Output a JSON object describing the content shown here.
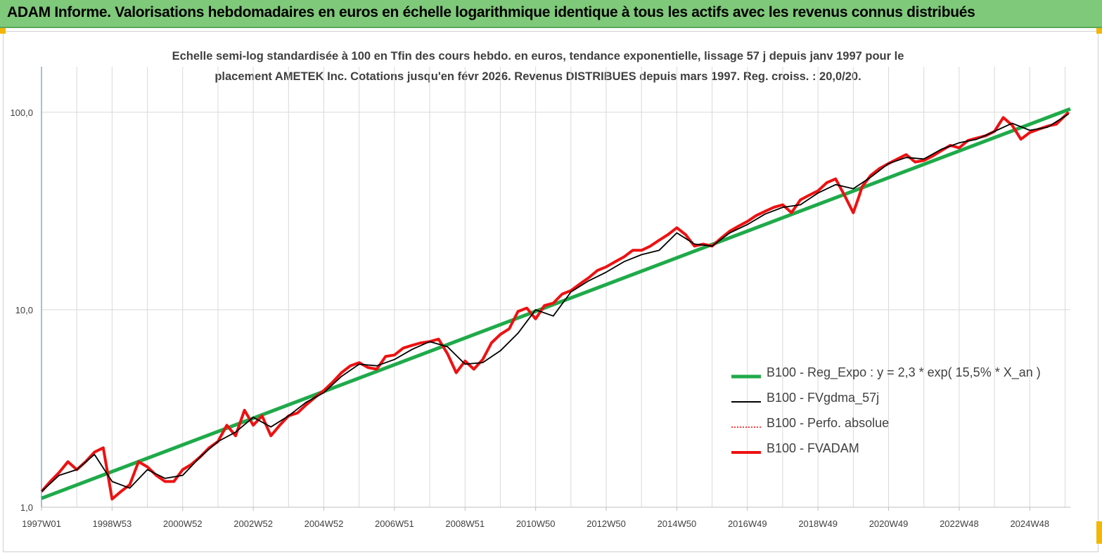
{
  "banner": {
    "title": "ADAM Informe. Valorisations hebdomadaires en euros en échelle logarithmique identique à tous les actifs avec les revenus connus distribués"
  },
  "chart_data": {
    "type": "line",
    "title_line1": "Echelle semi-log standardisée à 100 en Tfin des cours hebdo. en euros, tendance exponentielle, lissage 57 j depuis janv 1997 pour le",
    "title_line2": "placement AMETEK Inc. Cotations jusqu'en févr 2026. Revenus DISTRIBUES depuis mars 1997. Reg. croiss. : 20,0/20.",
    "y_scale": "log",
    "ylim": [
      1,
      170
    ],
    "y_ticks": [
      {
        "value": 1,
        "label": "1,0"
      },
      {
        "value": 10,
        "label": "10,0"
      },
      {
        "value": 100,
        "label": "100,0"
      }
    ],
    "xlim": [
      1997.0,
      2026.15
    ],
    "x_ticks": [
      {
        "value": 1997.0,
        "label": "1997W01"
      },
      {
        "value": 1999.0,
        "label": "1998W53"
      },
      {
        "value": 2001.0,
        "label": "2000W52"
      },
      {
        "value": 2003.0,
        "label": "2002W52"
      },
      {
        "value": 2005.0,
        "label": "2004W52"
      },
      {
        "value": 2007.0,
        "label": "2006W51"
      },
      {
        "value": 2009.0,
        "label": "2008W51"
      },
      {
        "value": 2011.0,
        "label": "2010W50"
      },
      {
        "value": 2013.0,
        "label": "2012W50"
      },
      {
        "value": 2015.0,
        "label": "2014W50"
      },
      {
        "value": 2017.0,
        "label": "2016W49"
      },
      {
        "value": 2019.0,
        "label": "2018W49"
      },
      {
        "value": 2021.0,
        "label": "2020W49"
      },
      {
        "value": 2023.0,
        "label": "2022W48"
      },
      {
        "value": 2025.0,
        "label": "2024W48"
      }
    ],
    "grid": true,
    "legend_position": "bottom-right",
    "series": [
      {
        "name": "B100 - Reg_Expo : y = 2,3 * exp( 15,5% *  X_an )",
        "color": "#1faa4a",
        "style": "thick-solid",
        "x": [
          1997.0,
          2026.15
        ],
        "y": [
          1.11,
          104
        ]
      },
      {
        "name": "B100 - FVgdma_57j",
        "color": "#000000",
        "style": "solid",
        "x": [
          1997.0,
          1997.5,
          1998.0,
          1998.5,
          1999.0,
          1999.5,
          2000.0,
          2000.5,
          2001.0,
          2001.5,
          2002.0,
          2002.5,
          2003.0,
          2003.5,
          2004.0,
          2004.5,
          2005.0,
          2005.5,
          2006.0,
          2006.5,
          2007.0,
          2007.5,
          2008.0,
          2008.5,
          2009.0,
          2009.5,
          2010.0,
          2010.5,
          2011.0,
          2011.5,
          2012.0,
          2012.5,
          2013.0,
          2013.5,
          2014.0,
          2014.5,
          2015.0,
          2015.5,
          2016.0,
          2016.5,
          2017.0,
          2017.5,
          2018.0,
          2018.5,
          2019.0,
          2019.5,
          2020.0,
          2020.5,
          2021.0,
          2021.5,
          2022.0,
          2022.5,
          2023.0,
          2023.5,
          2024.0,
          2024.5,
          2025.0,
          2025.5,
          2026.1
        ],
        "y": [
          1.2,
          1.45,
          1.55,
          1.85,
          1.35,
          1.25,
          1.55,
          1.4,
          1.45,
          1.8,
          2.15,
          2.4,
          2.85,
          2.55,
          2.9,
          3.4,
          3.8,
          4.6,
          5.3,
          5.2,
          5.6,
          6.3,
          6.9,
          6.5,
          5.3,
          5.4,
          6.2,
          7.6,
          10.0,
          9.3,
          12.3,
          14.0,
          15.5,
          17.5,
          19.0,
          20.0,
          24.5,
          21.5,
          21.0,
          24.5,
          27.0,
          30.5,
          33.0,
          34.0,
          39.0,
          43.0,
          41.0,
          47.0,
          55.0,
          59.0,
          58.0,
          65.0,
          70.0,
          73.0,
          80.0,
          88.0,
          81.0,
          84.0,
          98.0
        ]
      },
      {
        "name": "B100 - Perfo. absolue",
        "color": "#ff0000",
        "style": "dotted",
        "x": [],
        "y": []
      },
      {
        "name": "B100 - FVADAM",
        "color": "#ee1111",
        "style": "thick-solid",
        "x": [
          1997.0,
          1997.25,
          1997.5,
          1997.75,
          1998.0,
          1998.25,
          1998.5,
          1998.75,
          1999.0,
          1999.25,
          1999.5,
          1999.75,
          2000.0,
          2000.25,
          2000.5,
          2000.75,
          2001.0,
          2001.25,
          2001.5,
          2001.75,
          2002.0,
          2002.25,
          2002.5,
          2002.75,
          2003.0,
          2003.25,
          2003.5,
          2003.75,
          2004.0,
          2004.25,
          2004.5,
          2004.75,
          2005.0,
          2005.25,
          2005.5,
          2005.75,
          2006.0,
          2006.25,
          2006.5,
          2006.75,
          2007.0,
          2007.25,
          2007.5,
          2007.75,
          2008.0,
          2008.25,
          2008.5,
          2008.75,
          2009.0,
          2009.25,
          2009.5,
          2009.75,
          2010.0,
          2010.25,
          2010.5,
          2010.75,
          2011.0,
          2011.25,
          2011.5,
          2011.75,
          2012.0,
          2012.25,
          2012.5,
          2012.75,
          2013.0,
          2013.25,
          2013.5,
          2013.75,
          2014.0,
          2014.25,
          2014.5,
          2014.75,
          2015.0,
          2015.25,
          2015.5,
          2015.75,
          2016.0,
          2016.25,
          2016.5,
          2016.75,
          2017.0,
          2017.25,
          2017.5,
          2017.75,
          2018.0,
          2018.25,
          2018.5,
          2018.75,
          2019.0,
          2019.25,
          2019.5,
          2019.75,
          2020.0,
          2020.15,
          2020.25,
          2020.5,
          2020.75,
          2021.0,
          2021.25,
          2021.5,
          2021.75,
          2022.0,
          2022.25,
          2022.5,
          2022.75,
          2023.0,
          2023.25,
          2023.5,
          2023.75,
          2024.0,
          2024.25,
          2024.5,
          2024.75,
          2025.0,
          2025.25,
          2025.5,
          2025.75,
          2026.1
        ],
        "y": [
          1.2,
          1.35,
          1.5,
          1.7,
          1.55,
          1.7,
          1.9,
          2.0,
          1.1,
          1.2,
          1.3,
          1.7,
          1.6,
          1.45,
          1.35,
          1.35,
          1.55,
          1.65,
          1.8,
          2.0,
          2.15,
          2.6,
          2.3,
          3.1,
          2.6,
          2.9,
          2.3,
          2.6,
          2.9,
          3.0,
          3.3,
          3.6,
          3.9,
          4.3,
          4.8,
          5.2,
          5.4,
          5.1,
          5.0,
          5.8,
          5.9,
          6.4,
          6.6,
          6.8,
          6.9,
          7.1,
          6.0,
          4.8,
          5.5,
          5.0,
          5.6,
          6.8,
          7.5,
          8.0,
          9.8,
          10.2,
          9.0,
          10.5,
          10.8,
          12.0,
          12.5,
          13.5,
          14.5,
          15.8,
          16.5,
          17.5,
          18.5,
          20.0,
          20.0,
          21.0,
          22.5,
          24.0,
          26.0,
          24.0,
          21.0,
          21.5,
          21.0,
          23.0,
          25.0,
          26.5,
          28.0,
          30.0,
          31.5,
          33.0,
          34.0,
          31.0,
          36.0,
          38.0,
          40.0,
          44.0,
          46.0,
          38.0,
          31.0,
          37.0,
          42.0,
          48.0,
          52.0,
          55.0,
          58.0,
          61.0,
          56.0,
          57.0,
          60.0,
          64.0,
          68.0,
          66.0,
          72.0,
          74.0,
          76.0,
          80.0,
          94.0,
          86.0,
          73.0,
          79.0,
          82.0,
          85.0,
          87.0,
          100.0
        ]
      }
    ]
  }
}
